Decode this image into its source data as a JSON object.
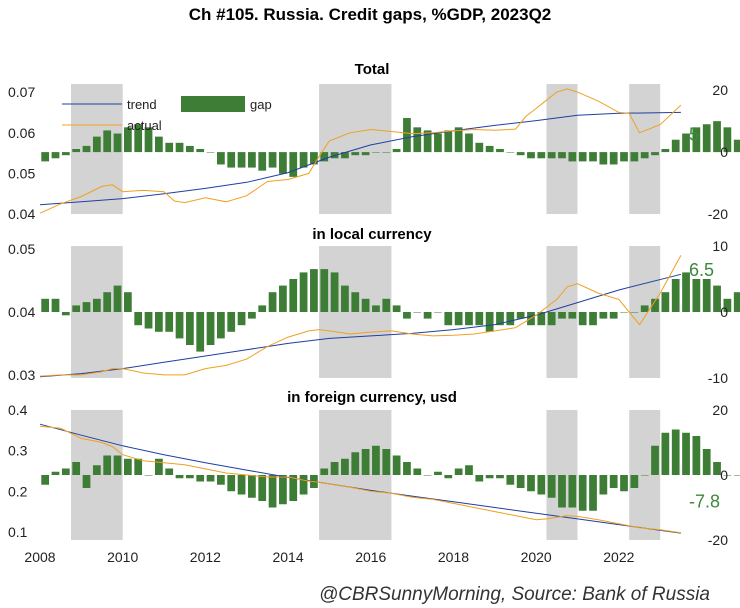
{
  "title": "Ch #105. Russia. Credit gaps, %GDP, 2023Q2",
  "footer": "@CBRSunnyMorning, Source: Bank of Russia",
  "colors": {
    "gap": "#3e7d36",
    "trend": "#1f3fa3",
    "actual": "#f0a020",
    "recession": "#d3d3d3",
    "end_label": "#3a8a3a"
  },
  "x_axis": {
    "range": [
      2008,
      2023.6
    ],
    "ticks": [
      2008,
      2010,
      2012,
      2014,
      2016,
      2018,
      2020,
      2022
    ]
  },
  "legend": {
    "trend": "trend",
    "actual": "actual",
    "gap": "gap"
  },
  "chart_data": [
    {
      "type": "bar",
      "title": "Total",
      "shaded_periods": [
        [
          2008.75,
          2010.0
        ],
        [
          2014.75,
          2016.5
        ],
        [
          2020.25,
          2021.0
        ],
        [
          2022.25,
          2023.0
        ]
      ],
      "left_axis": {
        "range": [
          0.04,
          0.072
        ],
        "ticks": [
          0.04,
          0.05,
          0.06,
          0.07
        ],
        "tick_labels": [
          "0.04",
          "0.05",
          "0.06",
          "0.07"
        ]
      },
      "right_axis": {
        "range": [
          -20,
          22
        ],
        "ticks": [
          -20,
          0,
          20
        ],
        "tick_labels": [
          "-20",
          "0",
          "20"
        ]
      },
      "series": [
        {
          "name": "gap",
          "axis": "right",
          "start": 2008.125,
          "step": 0.25,
          "values": [
            -3,
            -2,
            -1,
            1,
            2,
            5,
            7,
            6,
            8,
            9,
            8,
            5,
            3,
            3,
            2,
            1,
            0,
            -4,
            -5,
            -5,
            -5,
            -6,
            -5,
            -7,
            -8,
            -5,
            -4,
            -3,
            -2,
            -2,
            -1,
            -1,
            0,
            0,
            1,
            11,
            8,
            7,
            6,
            7,
            8,
            6,
            3,
            2,
            1,
            0,
            -1,
            -2,
            -2,
            -2,
            -2,
            -3,
            -3,
            -3,
            -4,
            -4,
            -3,
            -3,
            -2,
            -1,
            1,
            4,
            6,
            8,
            9,
            10,
            8,
            4,
            0,
            -2,
            -1,
            -2,
            -10,
            -8,
            -7,
            -4,
            -1,
            6
          ]
        },
        {
          "name": "trend",
          "axis": "left",
          "x": [
            2008.0,
            2009.0,
            2010.0,
            2011.0,
            2012.0,
            2013.0,
            2014.0,
            2015.0,
            2016.0,
            2017.0,
            2018.0,
            2019.0,
            2020.0,
            2021.0,
            2022.0,
            2023.5
          ],
          "y": [
            0.0423,
            0.043,
            0.0438,
            0.045,
            0.0463,
            0.0478,
            0.0502,
            0.054,
            0.057,
            0.059,
            0.0605,
            0.0618,
            0.063,
            0.0643,
            0.0648,
            0.065
          ]
        },
        {
          "name": "actual",
          "axis": "left",
          "x": [
            2008.0,
            2008.5,
            2009.0,
            2009.5,
            2009.75,
            2010.0,
            2010.5,
            2011.0,
            2011.25,
            2011.5,
            2012.0,
            2012.5,
            2013.0,
            2013.5,
            2014.0,
            2014.5,
            2014.75,
            2015.0,
            2015.5,
            2016.0,
            2016.5,
            2017.0,
            2017.5,
            2018.0,
            2018.5,
            2019.0,
            2019.5,
            2019.75,
            2020.0,
            2020.25,
            2020.5,
            2020.75,
            2021.0,
            2021.5,
            2022.0,
            2022.25,
            2022.5,
            2023.0,
            2023.5
          ],
          "y": [
            0.0402,
            0.0425,
            0.0443,
            0.0468,
            0.0472,
            0.0455,
            0.0458,
            0.0455,
            0.0432,
            0.0428,
            0.044,
            0.043,
            0.0445,
            0.048,
            0.0485,
            0.05,
            0.0542,
            0.058,
            0.06,
            0.0608,
            0.0603,
            0.0598,
            0.06,
            0.0605,
            0.0608,
            0.0606,
            0.0609,
            0.064,
            0.066,
            0.068,
            0.07,
            0.0708,
            0.07,
            0.0678,
            0.065,
            0.0648,
            0.06,
            0.062,
            0.0668
          ]
        }
      ],
      "end_label": "5"
    },
    {
      "type": "bar",
      "title": "in local currency",
      "shaded_periods": [
        [
          2008.75,
          2010.0
        ],
        [
          2014.75,
          2016.5
        ],
        [
          2020.25,
          2021.0
        ],
        [
          2022.25,
          2023.0
        ]
      ],
      "left_axis": {
        "range": [
          0.0295,
          0.0505
        ],
        "ticks": [
          0.03,
          0.04,
          0.05
        ],
        "tick_labels": [
          "0.03",
          "0.04",
          "0.05"
        ]
      },
      "right_axis": {
        "range": [
          -10,
          10
        ],
        "ticks": [
          -10,
          0,
          10
        ],
        "tick_labels": [
          "-10",
          "0",
          "10"
        ]
      },
      "series": [
        {
          "name": "gap",
          "axis": "right",
          "start": 2008.125,
          "step": 0.25,
          "values": [
            2,
            2,
            -0.5,
            1,
            1.5,
            2,
            3,
            4,
            3,
            -2,
            -2.5,
            -3,
            -3,
            -4,
            -5,
            -6,
            -5,
            -4,
            -3,
            -2,
            -1,
            1,
            3,
            4,
            5,
            6,
            6.5,
            6.5,
            6,
            4,
            3,
            2,
            1,
            2,
            1,
            -1,
            0,
            -1,
            0,
            -2,
            -2,
            -2,
            -2,
            -3,
            -2,
            -2,
            -1,
            -2,
            -2,
            -2,
            -1,
            -1,
            -2,
            -2,
            -1,
            -1,
            0,
            0,
            1,
            2,
            3,
            5,
            6,
            5,
            5,
            4,
            2,
            3,
            1,
            0,
            0,
            -1,
            -4,
            -7,
            -4,
            -1,
            2,
            6.5
          ]
        },
        {
          "name": "trend",
          "axis": "left",
          "x": [
            2008.0,
            2009.0,
            2010.0,
            2011.0,
            2012.0,
            2013.0,
            2014.0,
            2015.0,
            2016.0,
            2017.0,
            2018.0,
            2019.0,
            2020.0,
            2021.0,
            2022.0,
            2023.5
          ],
          "y": [
            0.0297,
            0.0302,
            0.031,
            0.032,
            0.033,
            0.034,
            0.035,
            0.0358,
            0.0362,
            0.0366,
            0.0372,
            0.038,
            0.0395,
            0.0415,
            0.0435,
            0.046
          ]
        },
        {
          "name": "actual",
          "axis": "left",
          "x": [
            2008.0,
            2008.5,
            2009.0,
            2009.5,
            2009.75,
            2010.0,
            2010.5,
            2011.0,
            2011.5,
            2012.0,
            2012.5,
            2013.0,
            2013.5,
            2014.0,
            2014.5,
            2014.75,
            2015.0,
            2015.5,
            2016.0,
            2016.5,
            2017.0,
            2017.5,
            2018.0,
            2018.5,
            2019.0,
            2019.5,
            2019.75,
            2020.0,
            2020.5,
            2020.75,
            2021.0,
            2021.5,
            2022.0,
            2022.25,
            2022.5,
            2023.0,
            2023.5
          ],
          "y": [
            0.0298,
            0.03,
            0.03,
            0.0305,
            0.031,
            0.031,
            0.0303,
            0.03,
            0.03,
            0.031,
            0.0315,
            0.0325,
            0.0345,
            0.036,
            0.037,
            0.0372,
            0.037,
            0.0365,
            0.0368,
            0.037,
            0.0365,
            0.0362,
            0.0363,
            0.0365,
            0.037,
            0.0375,
            0.0385,
            0.0395,
            0.042,
            0.044,
            0.0445,
            0.043,
            0.042,
            0.04,
            0.038,
            0.043,
            0.049
          ]
        }
      ],
      "end_label": "6.5"
    },
    {
      "type": "bar",
      "title": "in foreign currency, usd",
      "shaded_periods": [
        [
          2008.75,
          2010.0
        ],
        [
          2014.75,
          2016.5
        ],
        [
          2020.25,
          2021.0
        ],
        [
          2022.25,
          2023.0
        ]
      ],
      "left_axis": {
        "range": [
          0.08,
          0.4
        ],
        "ticks": [
          0.1,
          0.2,
          0.3,
          0.4
        ],
        "tick_labels": [
          "0.1",
          "0.2",
          "0.3",
          "0.4"
        ]
      },
      "right_axis": {
        "range": [
          -20,
          20
        ],
        "ticks": [
          -20,
          0,
          20
        ],
        "tick_labels": [
          "-20",
          "0",
          "20"
        ]
      },
      "series": [
        {
          "name": "gap",
          "axis": "right",
          "start": 2008.125,
          "step": 0.25,
          "values": [
            -3,
            1,
            2,
            4,
            -4,
            3,
            6,
            6,
            5,
            5,
            0,
            5,
            2,
            -1,
            -1,
            -2,
            -2,
            -3,
            -5,
            -6,
            -7,
            -8,
            -10,
            -9,
            -8,
            -6,
            -4,
            2,
            4,
            5,
            7,
            8,
            9,
            8,
            6,
            4,
            2,
            0,
            1,
            -1,
            2,
            3,
            -2,
            -1,
            -1,
            -3,
            -4,
            -5,
            -6,
            -7,
            -10,
            -10,
            -11,
            -11,
            -6,
            -4,
            -5,
            -4,
            0,
            9,
            13,
            14,
            13,
            12,
            8,
            4,
            0,
            0,
            0,
            0,
            -2,
            -3,
            -4,
            -6,
            -6,
            -7,
            -9,
            -7.8
          ]
        },
        {
          "name": "trend",
          "axis": "left",
          "x": [
            2008.0,
            2009.0,
            2010.0,
            2011.0,
            2012.0,
            2013.0,
            2014.0,
            2015.0,
            2016.0,
            2017.0,
            2018.0,
            2019.0,
            2020.0,
            2021.0,
            2022.0,
            2023.5
          ],
          "y": [
            0.365,
            0.338,
            0.312,
            0.29,
            0.27,
            0.252,
            0.234,
            0.218,
            0.202,
            0.188,
            0.174,
            0.16,
            0.146,
            0.132,
            0.118,
            0.097
          ]
        },
        {
          "name": "actual",
          "axis": "left",
          "x": [
            2008.0,
            2008.5,
            2009.0,
            2009.5,
            2009.75,
            2010.0,
            2010.5,
            2011.0,
            2011.5,
            2012.0,
            2012.5,
            2013.0,
            2013.5,
            2014.0,
            2014.5,
            2014.75,
            2015.0,
            2015.5,
            2016.0,
            2016.5,
            2017.0,
            2017.5,
            2018.0,
            2018.5,
            2019.0,
            2019.5,
            2020.0,
            2020.25,
            2020.75,
            2021.0,
            2021.5,
            2022.0,
            2022.5,
            2023.0,
            2023.5
          ],
          "y": [
            0.36,
            0.355,
            0.33,
            0.32,
            0.31,
            0.29,
            0.275,
            0.27,
            0.265,
            0.255,
            0.245,
            0.24,
            0.235,
            0.235,
            0.225,
            0.222,
            0.218,
            0.21,
            0.2,
            0.195,
            0.185,
            0.18,
            0.17,
            0.16,
            0.15,
            0.14,
            0.13,
            0.132,
            0.14,
            0.138,
            0.13,
            0.12,
            0.11,
            0.105,
            0.098
          ]
        }
      ],
      "end_label": "-7.8"
    }
  ]
}
